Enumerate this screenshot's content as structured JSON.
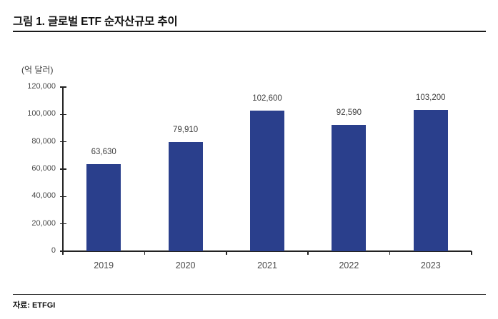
{
  "page": {
    "title": "그림 1. 글로벌 ETF 순자산규모 추이",
    "source": "자료: ETFGI"
  },
  "chart_data": {
    "type": "bar",
    "title": "그림 1. 글로벌 ETF 순자산규모 추이",
    "unit_label": "(억 달러)",
    "categories": [
      "2019",
      "2020",
      "2021",
      "2022",
      "2023"
    ],
    "values": [
      63630,
      79910,
      102600,
      92590,
      103200
    ],
    "value_labels": [
      "63,630",
      "79,910",
      "102,600",
      "92,590",
      "103,200"
    ],
    "ylabel": "(억 달러)",
    "xlabel": "",
    "ylim": [
      0,
      120000
    ],
    "ytick_step": 20000,
    "ytick_labels": [
      "0",
      "20,000",
      "40,000",
      "60,000",
      "80,000",
      "100,000",
      "120,000"
    ],
    "bar_color": "#2A3F8C",
    "grid": false,
    "legend_position": "none",
    "source": "자료: ETFGI"
  }
}
